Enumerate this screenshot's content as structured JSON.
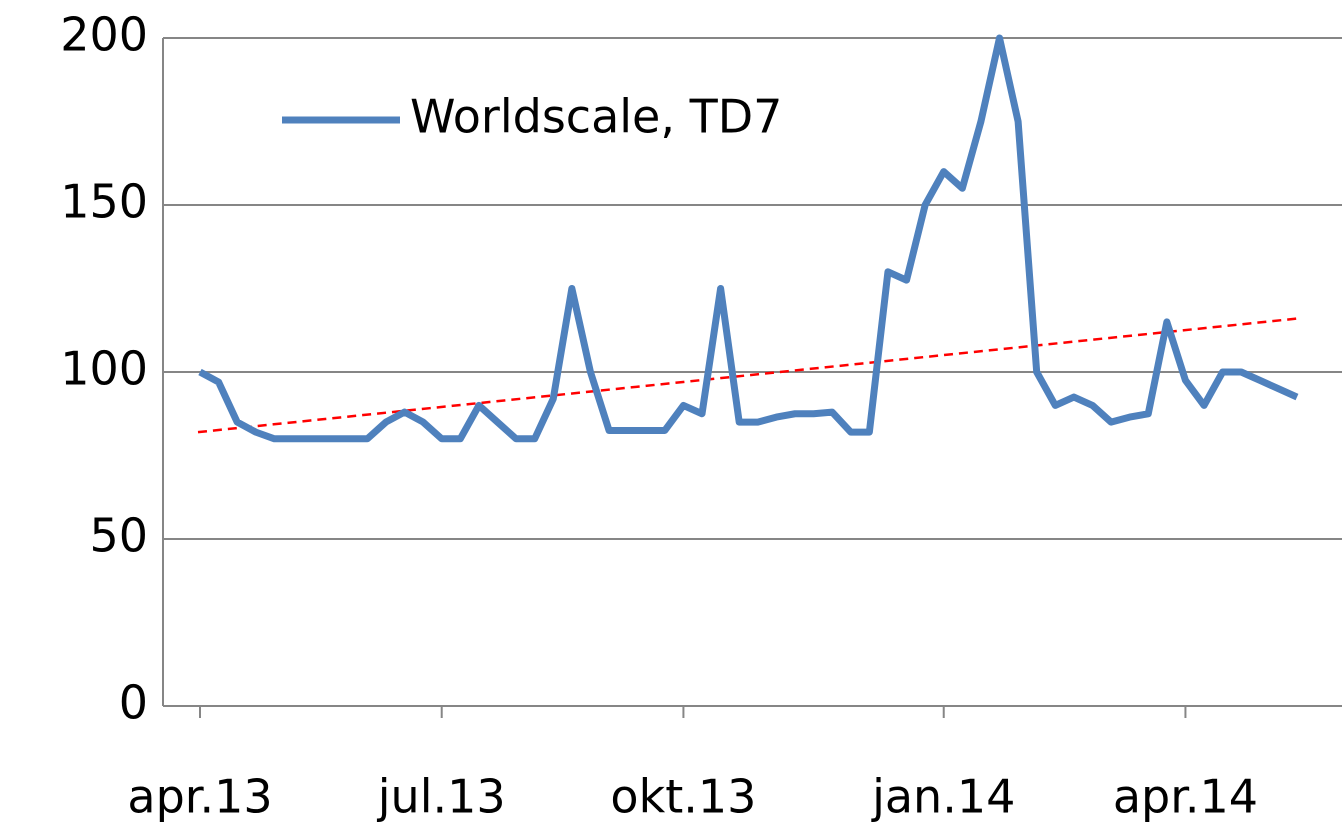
{
  "chart_data": {
    "type": "line",
    "categories": [
      "apr.13",
      null,
      null,
      null,
      null,
      null,
      null,
      null,
      null,
      null,
      null,
      null,
      null,
      "jul.13",
      null,
      null,
      null,
      null,
      null,
      null,
      null,
      null,
      null,
      null,
      null,
      null,
      "okt.13",
      null,
      null,
      null,
      null,
      null,
      null,
      null,
      null,
      null,
      null,
      null,
      null,
      null,
      "jan.14",
      null,
      null,
      null,
      null,
      null,
      null,
      null,
      null,
      null,
      null,
      null,
      null,
      "apr.14",
      null,
      null,
      null,
      null,
      null,
      null
    ],
    "series": [
      {
        "name": "Worldscale, TD7",
        "color": "#4f81bd",
        "values": [
          100,
          97,
          85,
          82,
          80,
          80,
          80,
          80,
          80,
          80,
          85,
          88,
          85,
          80,
          80,
          90,
          85,
          80,
          80,
          92,
          125,
          100,
          82.5,
          82.5,
          82.5,
          82.5,
          90,
          87.5,
          125,
          85,
          85,
          86.5,
          87.5,
          87.5,
          88,
          82,
          82,
          130,
          127.5,
          150,
          160,
          155,
          175,
          200,
          175,
          100,
          90,
          92.5,
          90,
          85,
          86.5,
          87.5,
          115,
          97.5,
          90,
          100,
          100,
          97.5,
          95,
          92.5
        ]
      }
    ],
    "trendline": {
      "color": "#ff0000",
      "values": [
        82,
        116
      ]
    },
    "ylim": [
      0,
      200
    ],
    "yticks": [
      0,
      50,
      100,
      150,
      200
    ],
    "grid": true,
    "legend": "top-left"
  }
}
